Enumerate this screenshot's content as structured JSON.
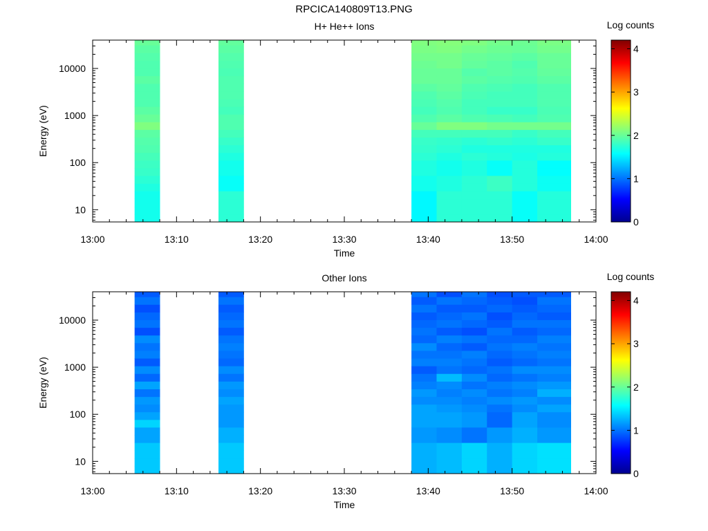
{
  "figure": {
    "title": "RPCICA140809T13.PNG"
  },
  "colors": {
    "colormap": [
      "#00008f",
      "#0000ff",
      "#0080ff",
      "#00ffff",
      "#80ff80",
      "#ffff00",
      "#ff8000",
      "#ff0000",
      "#800000"
    ]
  },
  "chart_data": [
    {
      "type": "heatmap",
      "title": "H+ He++ Ions",
      "xlabel": "Time",
      "ylabel": "Energy (eV)",
      "colorbar_label": "Log counts",
      "yscale": "log",
      "ylim": [
        5.5,
        40000
      ],
      "xlim_minutes": [
        0,
        60
      ],
      "x_ticks": [
        "13:00",
        "13:10",
        "13:20",
        "13:30",
        "13:40",
        "13:50",
        "14:00"
      ],
      "y_ticks": [
        "10",
        "100",
        "1000",
        "10000"
      ],
      "colorbar_range": [
        0,
        4.2
      ],
      "colorbar_ticks": [
        "0",
        "1",
        "2",
        "3",
        "4"
      ],
      "energy_bins": [
        5.5,
        8,
        11.5,
        17,
        25,
        36,
        53,
        77,
        112,
        163,
        237,
        345,
        502,
        731,
        1064,
        1549,
        2255,
        3283,
        4780,
        6960,
        10134,
        14756,
        21489,
        31296,
        40000
      ],
      "time_columns": [
        {
          "start": "13:05",
          "end": "13:08",
          "values": [
            1.65,
            1.65,
            1.65,
            1.65,
            1.7,
            1.75,
            1.8,
            1.82,
            1.86,
            1.9,
            1.92,
            1.95,
            2.1,
            2.0,
            1.95,
            1.9,
            1.9,
            1.9,
            1.95,
            1.9,
            1.9,
            1.92,
            1.95,
            2.0
          ]
        },
        {
          "start": "13:15",
          "end": "13:18",
          "values": [
            1.75,
            1.75,
            1.75,
            1.75,
            1.6,
            1.6,
            1.65,
            1.65,
            1.7,
            1.75,
            1.8,
            1.85,
            1.9,
            1.9,
            1.85,
            1.88,
            1.9,
            1.9,
            1.9,
            1.88,
            1.9,
            1.92,
            1.95,
            1.98
          ]
        },
        {
          "start": "13:38",
          "end": "13:41",
          "values": [
            1.55,
            1.55,
            1.55,
            1.55,
            1.65,
            1.65,
            1.7,
            1.7,
            1.75,
            1.78,
            1.8,
            1.85,
            2.0,
            1.9,
            1.85,
            1.88,
            1.9,
            1.95,
            2.0,
            2.0,
            2.02,
            2.05,
            2.08,
            2.1
          ]
        },
        {
          "start": "13:41",
          "end": "13:44",
          "values": [
            1.75,
            1.75,
            1.75,
            1.75,
            1.7,
            1.7,
            1.65,
            1.65,
            1.7,
            1.75,
            1.78,
            1.85,
            2.1,
            1.95,
            1.9,
            1.92,
            1.95,
            1.98,
            2.0,
            2.0,
            2.05,
            2.05,
            2.1,
            2.12
          ]
        },
        {
          "start": "13:44",
          "end": "13:47",
          "values": [
            1.75,
            1.75,
            1.75,
            1.75,
            1.75,
            1.75,
            1.7,
            1.7,
            1.75,
            1.7,
            1.75,
            1.85,
            2.1,
            1.9,
            1.85,
            1.85,
            1.88,
            1.9,
            1.95,
            1.92,
            1.98,
            2.0,
            2.05,
            2.1
          ]
        },
        {
          "start": "13:47",
          "end": "13:50",
          "values": [
            1.75,
            1.75,
            1.75,
            1.75,
            1.82,
            1.82,
            1.6,
            1.6,
            1.72,
            1.7,
            1.78,
            1.85,
            2.05,
            1.88,
            1.8,
            1.85,
            1.85,
            1.88,
            1.92,
            1.95,
            1.95,
            1.98,
            2.02,
            2.05
          ]
        },
        {
          "start": "13:50",
          "end": "13:53",
          "values": [
            1.6,
            1.6,
            1.6,
            1.6,
            1.72,
            1.72,
            1.72,
            1.72,
            1.68,
            1.7,
            1.75,
            1.8,
            2.05,
            1.85,
            1.8,
            1.85,
            1.85,
            1.85,
            1.9,
            1.92,
            1.9,
            1.95,
            2.0,
            2.02
          ]
        },
        {
          "start": "13:53",
          "end": "13:57",
          "values": [
            1.72,
            1.72,
            1.72,
            1.72,
            1.62,
            1.62,
            1.58,
            1.58,
            1.72,
            1.7,
            1.8,
            1.85,
            2.05,
            1.9,
            1.88,
            1.9,
            1.9,
            1.9,
            1.95,
            1.98,
            2.0,
            2.0,
            2.05,
            2.08
          ]
        }
      ]
    },
    {
      "type": "heatmap",
      "title": "Other Ions",
      "xlabel": "Time",
      "ylabel": "Energy (eV)",
      "colorbar_label": "Log counts",
      "yscale": "log",
      "ylim": [
        5.5,
        40000
      ],
      "xlim_minutes": [
        0,
        60
      ],
      "x_ticks": [
        "13:00",
        "13:10",
        "13:20",
        "13:30",
        "13:40",
        "13:50",
        "14:00"
      ],
      "y_ticks": [
        "10",
        "100",
        "1000",
        "10000"
      ],
      "colorbar_range": [
        0,
        4.2
      ],
      "colorbar_ticks": [
        "0",
        "1",
        "2",
        "3",
        "4"
      ],
      "energy_bins": [
        5.5,
        8,
        11.5,
        17,
        25,
        36,
        53,
        77,
        112,
        163,
        237,
        345,
        502,
        731,
        1064,
        1549,
        2255,
        3283,
        4780,
        6960,
        10134,
        14756,
        21489,
        31296,
        40000
      ],
      "time_columns": [
        {
          "start": "13:05",
          "end": "13:08",
          "values": [
            1.35,
            1.35,
            1.35,
            1.35,
            1.2,
            1.2,
            1.4,
            1.2,
            1.1,
            1.15,
            1.0,
            1.2,
            0.95,
            1.1,
            0.9,
            1.05,
            1.0,
            1.1,
            0.85,
            1.0,
            0.95,
            0.85,
            1.0,
            0.9
          ]
        },
        {
          "start": "13:15",
          "end": "13:18",
          "values": [
            1.35,
            1.35,
            1.35,
            1.35,
            1.25,
            1.25,
            1.15,
            1.15,
            1.15,
            1.2,
            1.1,
            1.15,
            1.0,
            1.1,
            0.95,
            1.0,
            1.05,
            1.0,
            0.9,
            1.0,
            0.95,
            0.9,
            1.0,
            0.9
          ]
        },
        {
          "start": "13:38",
          "end": "13:41",
          "values": [
            1.25,
            1.25,
            1.25,
            1.25,
            1.15,
            1.15,
            1.2,
            1.2,
            1.2,
            1.1,
            1.15,
            1.05,
            1.0,
            0.9,
            1.05,
            1.0,
            1.1,
            0.95,
            1.0,
            0.95,
            0.9,
            1.0,
            0.9,
            1.0
          ]
        },
        {
          "start": "13:41",
          "end": "13:44",
          "values": [
            1.3,
            1.3,
            1.3,
            1.3,
            1.1,
            1.1,
            1.2,
            1.2,
            1.15,
            1.1,
            1.05,
            1.1,
            1.3,
            1.0,
            1.05,
            1.0,
            0.95,
            1.05,
            0.9,
            1.0,
            0.95,
            0.9,
            1.0,
            0.85
          ]
        },
        {
          "start": "13:44",
          "end": "13:47",
          "values": [
            1.4,
            1.4,
            1.4,
            1.4,
            1.0,
            1.0,
            1.15,
            1.15,
            1.1,
            1.05,
            1.1,
            1.0,
            1.1,
            0.95,
            1.0,
            1.05,
            0.9,
            1.0,
            0.85,
            0.95,
            1.0,
            0.9,
            0.95,
            1.0
          ]
        },
        {
          "start": "13:47",
          "end": "13:50",
          "values": [
            1.25,
            1.25,
            1.25,
            1.25,
            1.15,
            1.15,
            0.95,
            0.95,
            1.0,
            1.1,
            1.0,
            1.05,
            0.95,
            1.0,
            0.9,
            0.95,
            1.0,
            0.95,
            1.0,
            0.9,
            0.85,
            0.95,
            0.9,
            0.85
          ]
        },
        {
          "start": "13:50",
          "end": "13:53",
          "values": [
            1.4,
            1.4,
            1.4,
            1.4,
            1.25,
            1.25,
            1.2,
            1.2,
            1.1,
            1.15,
            1.05,
            1.1,
            1.0,
            1.1,
            0.95,
            1.0,
            1.05,
            0.95,
            0.9,
            1.0,
            0.95,
            0.9,
            0.85,
            0.9
          ]
        },
        {
          "start": "13:53",
          "end": "13:57",
          "values": [
            1.45,
            1.45,
            1.45,
            1.45,
            1.15,
            1.15,
            1.1,
            1.1,
            1.2,
            1.1,
            1.25,
            1.15,
            1.05,
            1.1,
            1.0,
            1.05,
            1.0,
            1.05,
            0.95,
            1.0,
            0.9,
            0.95,
            1.0,
            0.9
          ]
        }
      ]
    }
  ]
}
